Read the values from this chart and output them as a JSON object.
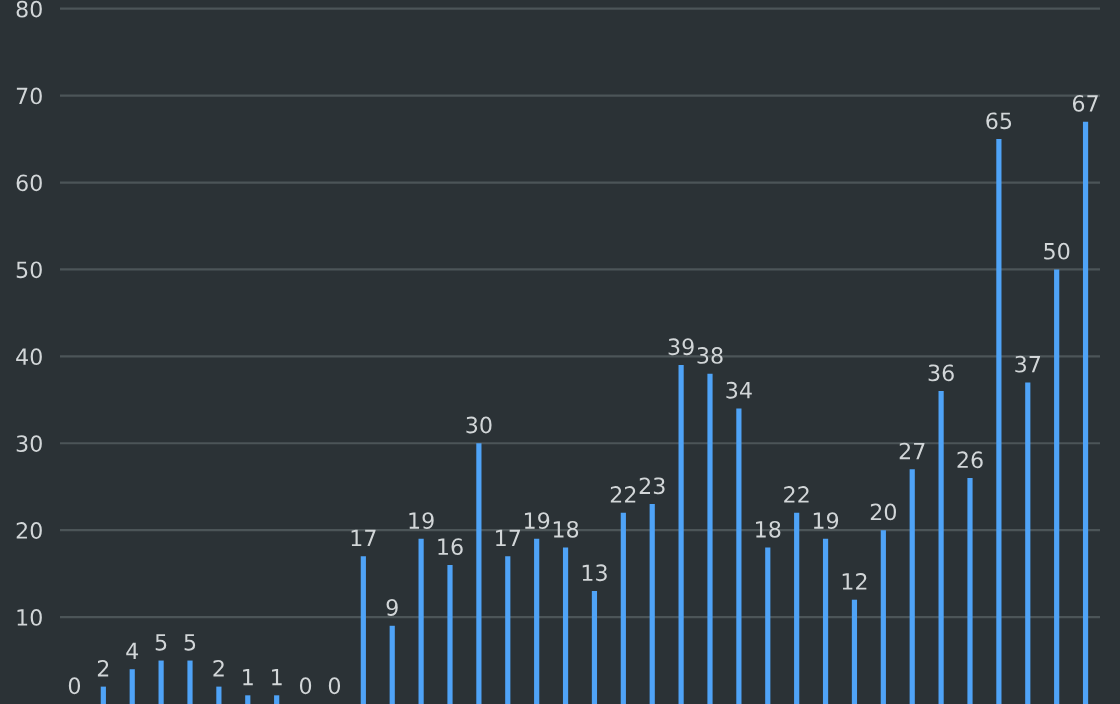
{
  "chart_data": {
    "type": "bar",
    "categories": [
      null,
      null,
      null,
      null,
      null,
      null,
      null,
      null,
      null,
      null,
      null,
      null,
      null,
      null,
      null,
      null,
      null,
      null,
      null,
      null,
      null,
      null,
      null,
      null,
      null,
      null,
      null,
      null,
      null,
      null,
      null,
      null,
      null,
      null,
      null,
      null
    ],
    "values": [
      0,
      2,
      4,
      5,
      5,
      2,
      1,
      1,
      0,
      0,
      17,
      9,
      19,
      16,
      30,
      17,
      19,
      18,
      13,
      22,
      23,
      39,
      38,
      34,
      18,
      22,
      19,
      12,
      20,
      27,
      36,
      26,
      65,
      37,
      50,
      67
    ],
    "color": "#4fa3f7",
    "data_labels": true,
    "ylim": [
      0,
      81
    ],
    "yticks": [
      10,
      20,
      30,
      40,
      50,
      60,
      70,
      80
    ],
    "grid": "y"
  }
}
